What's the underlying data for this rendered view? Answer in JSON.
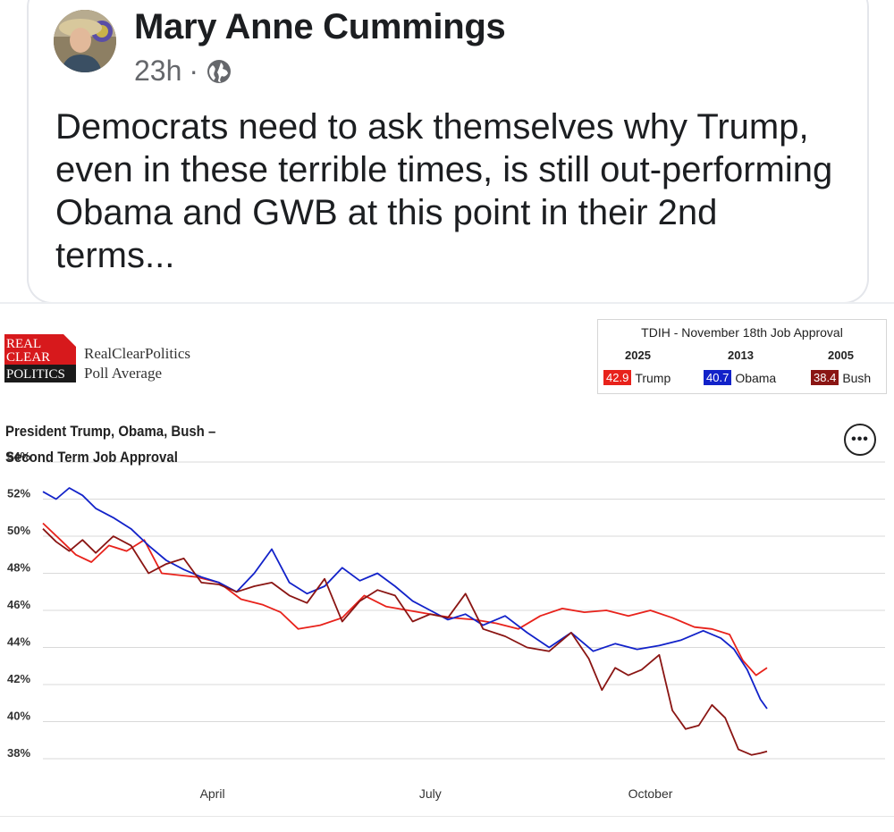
{
  "post": {
    "author": "Mary Anne Cummings",
    "time": "23h",
    "separator": "·",
    "globe_icon": "globe-icon",
    "text": "Democrats need to ask themselves why Trump, even in these terrible times, is still out-performing Obama and GWB at this point in their 2nd terms..."
  },
  "rcp": {
    "logo_lines": [
      "REAL",
      "CLEAR",
      "POLITICS"
    ],
    "name": "RealClearPolitics",
    "subtitle": "Poll Average",
    "logo_color": "#d7191c"
  },
  "tdih": {
    "title": "TDIH - November 18th Job Approval",
    "entries": [
      {
        "year": "2025",
        "value": "42.9",
        "name": "Trump",
        "color": "#e8221b"
      },
      {
        "year": "2013",
        "value": "40.7",
        "name": "Obama",
        "color": "#1222c9"
      },
      {
        "year": "2005",
        "value": "38.4",
        "name": "Bush",
        "color": "#8a1513"
      }
    ]
  },
  "more_button": "•••",
  "chart_data": {
    "type": "line",
    "title": "President Trump, Obama, Bush – Second Term Job Approval",
    "xlabel": "",
    "ylabel": "",
    "ylim": [
      38,
      54
    ],
    "yticks": [
      38,
      40,
      42,
      44,
      46,
      48,
      50,
      52,
      54
    ],
    "ytick_labels": [
      "38%",
      "40%",
      "42%",
      "44%",
      "46%",
      "48%",
      "50%",
      "52%",
      "54%"
    ],
    "xlim": [
      0,
      329
    ],
    "xticks": [
      {
        "x": 77,
        "label": "April"
      },
      {
        "x": 176,
        "label": "July"
      },
      {
        "x": 276,
        "label": "October"
      }
    ],
    "grid": true,
    "legend": "none",
    "series": [
      {
        "name": "Trump",
        "color": "#e8221b",
        "x": [
          0,
          8,
          15,
          22,
          30,
          38,
          46,
          54,
          62,
          70,
          80,
          90,
          100,
          108,
          116,
          126,
          136,
          146,
          156,
          166,
          176,
          186,
          196,
          206,
          216,
          226,
          236,
          246,
          256,
          266,
          276,
          286,
          296,
          304,
          312,
          318,
          324,
          329
        ],
        "y": [
          50.7,
          49.8,
          49.0,
          48.6,
          49.5,
          49.2,
          49.8,
          48.0,
          47.9,
          47.8,
          47.5,
          46.6,
          46.3,
          45.9,
          45.0,
          45.2,
          45.6,
          46.8,
          46.2,
          46.0,
          45.8,
          45.6,
          45.5,
          45.3,
          45.0,
          45.7,
          46.1,
          45.9,
          46.0,
          45.7,
          46.0,
          45.6,
          45.1,
          45.0,
          44.7,
          43.3,
          42.5,
          42.9
        ]
      },
      {
        "name": "Obama",
        "color": "#1222c9",
        "x": [
          0,
          6,
          12,
          18,
          24,
          32,
          40,
          48,
          56,
          64,
          72,
          80,
          88,
          96,
          104,
          112,
          120,
          128,
          136,
          144,
          152,
          160,
          168,
          176,
          184,
          192,
          200,
          210,
          220,
          230,
          240,
          250,
          260,
          270,
          280,
          290,
          300,
          308,
          314,
          320,
          326,
          329
        ],
        "y": [
          52.4,
          52.0,
          52.6,
          52.2,
          51.5,
          51.0,
          50.4,
          49.5,
          48.7,
          48.2,
          47.8,
          47.5,
          47.0,
          48.0,
          49.3,
          47.5,
          46.9,
          47.3,
          48.3,
          47.6,
          48.0,
          47.3,
          46.5,
          46.0,
          45.5,
          45.8,
          45.2,
          45.7,
          44.8,
          44.0,
          44.8,
          43.8,
          44.2,
          43.9,
          44.1,
          44.4,
          44.9,
          44.5,
          43.9,
          42.8,
          41.2,
          40.7
        ]
      },
      {
        "name": "Bush",
        "color": "#8a1513",
        "x": [
          0,
          6,
          12,
          18,
          24,
          32,
          40,
          48,
          56,
          64,
          72,
          80,
          88,
          96,
          104,
          112,
          120,
          128,
          136,
          144,
          152,
          160,
          168,
          176,
          184,
          192,
          200,
          210,
          220,
          230,
          240,
          248,
          254,
          260,
          266,
          272,
          280,
          286,
          292,
          298,
          304,
          310,
          316,
          322,
          326,
          329
        ],
        "y": [
          50.4,
          49.7,
          49.2,
          49.8,
          49.1,
          50.0,
          49.5,
          48.0,
          48.5,
          48.8,
          47.5,
          47.4,
          47.0,
          47.3,
          47.5,
          46.8,
          46.4,
          47.7,
          45.4,
          46.5,
          47.1,
          46.8,
          45.4,
          45.8,
          45.6,
          46.9,
          45.0,
          44.6,
          44.0,
          43.8,
          44.8,
          43.4,
          41.7,
          42.9,
          42.5,
          42.8,
          43.6,
          40.6,
          39.6,
          39.8,
          40.9,
          40.2,
          38.5,
          38.2,
          38.3,
          38.4
        ]
      }
    ]
  }
}
